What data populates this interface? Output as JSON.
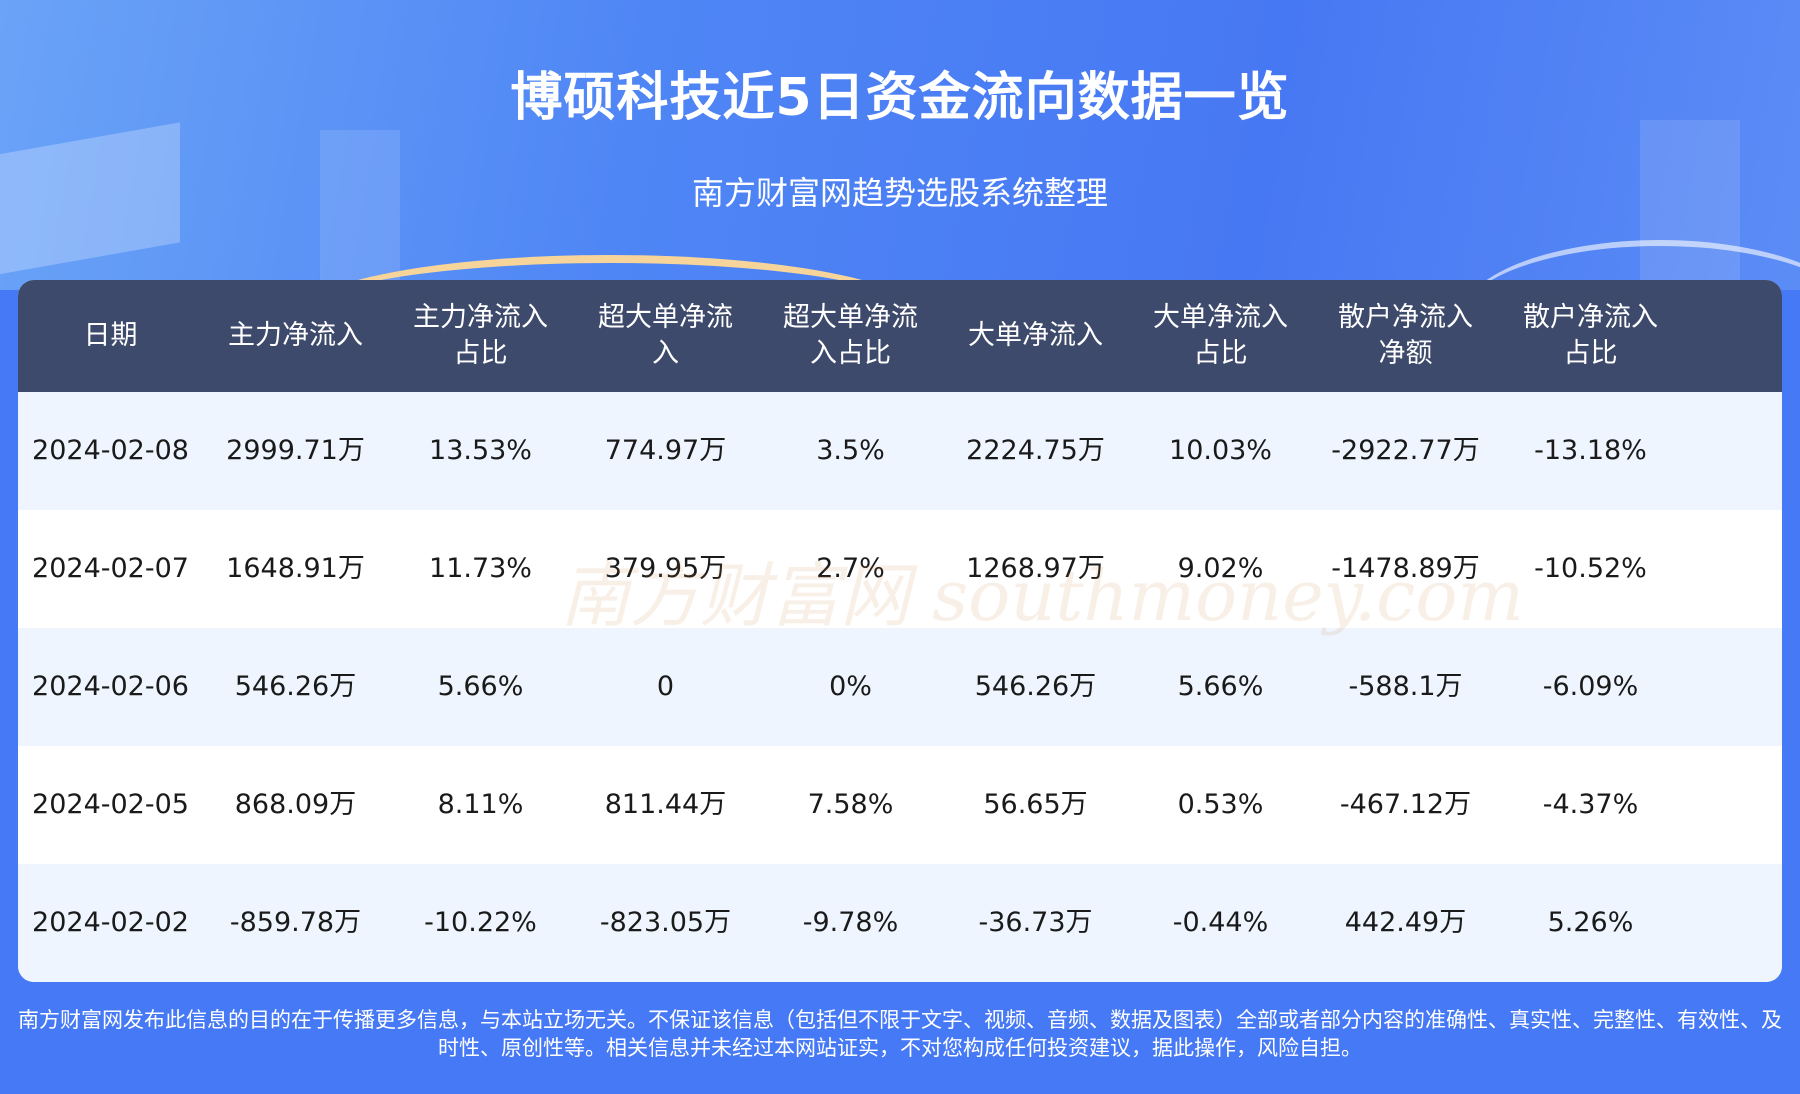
{
  "title": "博硕科技近5日资金流向数据一览",
  "subtitle": "南方财富网趋势选股系统整理",
  "watermark": "南方财富网 southmoney.com",
  "columns": [
    "日期",
    "主力净流入",
    "主力净流入\n占比",
    "超大单净流\n入",
    "超大单净流\n入占比",
    "大单净流入",
    "大单净流入\n占比",
    "散户净流入\n净额",
    "散户净流入\n占比"
  ],
  "rows": [
    [
      "2024-02-08",
      "2999.71万",
      "13.53%",
      "774.97万",
      "3.5%",
      "2224.75万",
      "10.03%",
      "-2922.77万",
      "-13.18%"
    ],
    [
      "2024-02-07",
      "1648.91万",
      "11.73%",
      "379.95万",
      "2.7%",
      "1268.97万",
      "9.02%",
      "-1478.89万",
      "-10.52%"
    ],
    [
      "2024-02-06",
      "546.26万",
      "5.66%",
      "0",
      "0%",
      "546.26万",
      "5.66%",
      "-588.1万",
      "-6.09%"
    ],
    [
      "2024-02-05",
      "868.09万",
      "8.11%",
      "811.44万",
      "7.58%",
      "56.65万",
      "0.53%",
      "-467.12万",
      "-4.37%"
    ],
    [
      "2024-02-02",
      "-859.78万",
      "-10.22%",
      "-823.05万",
      "-9.78%",
      "-36.73万",
      "-0.44%",
      "442.49万",
      "5.26%"
    ]
  ],
  "disclaimer": "南方财富网发布此信息的目的在于传播更多信息，与本站立场无关。不保证该信息（包括但不限于文字、视频、音频、数据及图表）全部或者部分内容的准确性、真实性、完整性、有效性、及时性、原创性等。相关信息并未经过本网站证实，不对您构成任何投资建议，据此操作，风险自担。",
  "colors": {
    "header_bg": "#3d4a6b",
    "page_bg": "#4679f5",
    "row_alt": "#eef5fe"
  }
}
